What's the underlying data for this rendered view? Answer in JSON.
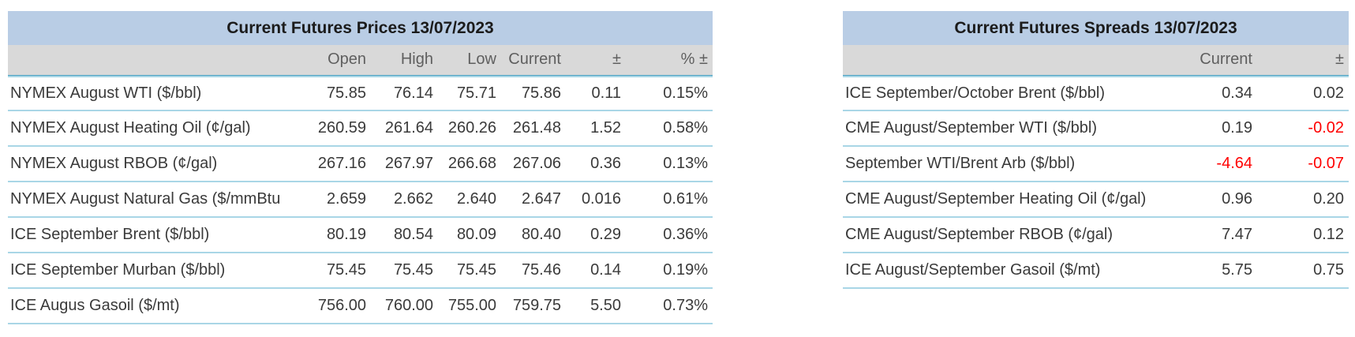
{
  "chart_data": [
    {
      "type": "table",
      "title": "Current Futures Prices 13/07/2023",
      "columns": [
        "",
        "Open",
        "High",
        "Low",
        "Current",
        "±",
        "% ±"
      ],
      "rows": [
        [
          "NYMEX August WTI ($/bbl)",
          "75.85",
          "76.14",
          "75.71",
          "75.86",
          "0.11",
          "0.15%"
        ],
        [
          "NYMEX August Heating Oil (¢/gal)",
          "260.59",
          "261.64",
          "260.26",
          "261.48",
          "1.52",
          "0.58%"
        ],
        [
          "NYMEX August RBOB (¢/gal)",
          "267.16",
          "267.97",
          "266.68",
          "267.06",
          "0.36",
          "0.13%"
        ],
        [
          "NYMEX August Natural Gas ($/mmBtu",
          "2.659",
          "2.662",
          "2.640",
          "2.647",
          "0.016",
          "0.61%"
        ],
        [
          "ICE September Brent ($/bbl)",
          "80.19",
          "80.54",
          "80.09",
          "80.40",
          "0.29",
          "0.36%"
        ],
        [
          "ICE September Murban ($/bbl)",
          "75.45",
          "75.45",
          "75.45",
          "75.46",
          "0.14",
          "0.19%"
        ],
        [
          "ICE Augus Gasoil ($/mt)",
          "756.00",
          "760.00",
          "755.00",
          "759.75",
          "5.50",
          "0.73%"
        ]
      ],
      "layout": {
        "grid": "horizontal light-cyan row dividers",
        "negative_values_red": true
      }
    },
    {
      "type": "table",
      "title": "Current Futures Spreads 13/07/2023",
      "columns": [
        "",
        "Current",
        "±"
      ],
      "rows": [
        [
          "ICE September/October Brent ($/bbl)",
          "0.34",
          "0.02"
        ],
        [
          "CME August/September WTI ($/bbl)",
          "0.19",
          "-0.02"
        ],
        [
          "September WTI/Brent Arb ($/bbl)",
          "-4.64",
          "-0.07"
        ],
        [
          "CME August/September Heating Oil (¢/gal)",
          "0.96",
          "0.20"
        ],
        [
          "CME August/September RBOB (¢/gal)",
          "7.47",
          "0.12"
        ],
        [
          "ICE August/September Gasoil ($/mt)",
          "5.75",
          "0.75"
        ]
      ],
      "layout": {
        "grid": "horizontal light-cyan row dividers",
        "negative_values_red": true
      }
    }
  ],
  "colors": {
    "title_bar_bg": "#b9cde5",
    "header_row_bg": "#d9d9d9",
    "header_divider_teal": "#4aa0c2",
    "row_divider_light": "#a9d6e6",
    "negative_value": "#ff0000",
    "text": "#3a3a3a",
    "header_text": "#5f5f5f"
  }
}
